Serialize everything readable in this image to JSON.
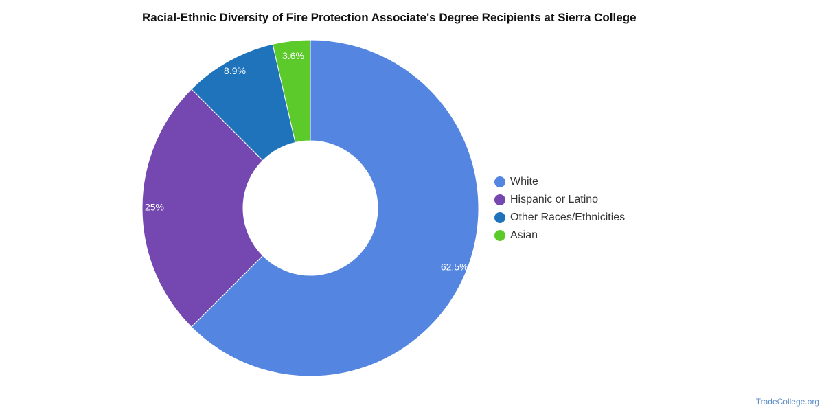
{
  "chart_data": {
    "type": "pie",
    "title": "Racial-Ethnic Diversity of Fire Protection Associate's Degree Recipients at Sierra College",
    "donut": true,
    "legend_position": "right",
    "categories": [
      "White",
      "Hispanic or Latino",
      "Other Races/Ethnicities",
      "Asian"
    ],
    "values": [
      62.5,
      25,
      8.9,
      3.6
    ],
    "labels": [
      "62.5%",
      "25%",
      "8.9%",
      "3.6%"
    ],
    "colors": [
      "#5385e1",
      "#7548b1",
      "#1f73bb",
      "#5cca2a"
    ]
  },
  "credit": "TradeCollege.org"
}
